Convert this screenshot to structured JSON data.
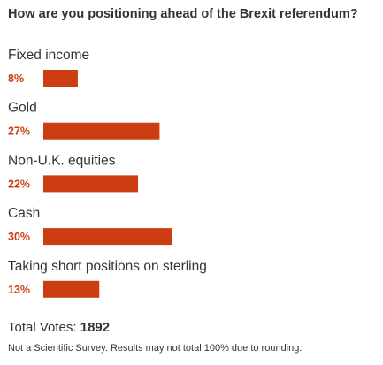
{
  "poll": {
    "question": "How are you positioning ahead of the Brexit referendum?",
    "total_votes_label": "Total Votes:",
    "total_votes": "1892",
    "disclaimer": "Not a Scientific Survey. Results may not total 100% due to rounding."
  },
  "colors": {
    "bar": "#cc3d12",
    "percent_text": "#cc3d12",
    "text": "#333333"
  },
  "chart_data": {
    "type": "bar",
    "orientation": "horizontal",
    "title": "How are you positioning ahead of the Brexit referendum?",
    "categories": [
      "Fixed income",
      "Gold",
      "Non-U.K. equities",
      "Cash",
      "Taking short positions on sterling"
    ],
    "values": [
      8,
      27,
      22,
      30,
      13
    ],
    "value_labels": [
      "8%",
      "27%",
      "22%",
      "30%",
      "13%"
    ],
    "unit": "%",
    "grid": false,
    "legend": "none"
  }
}
